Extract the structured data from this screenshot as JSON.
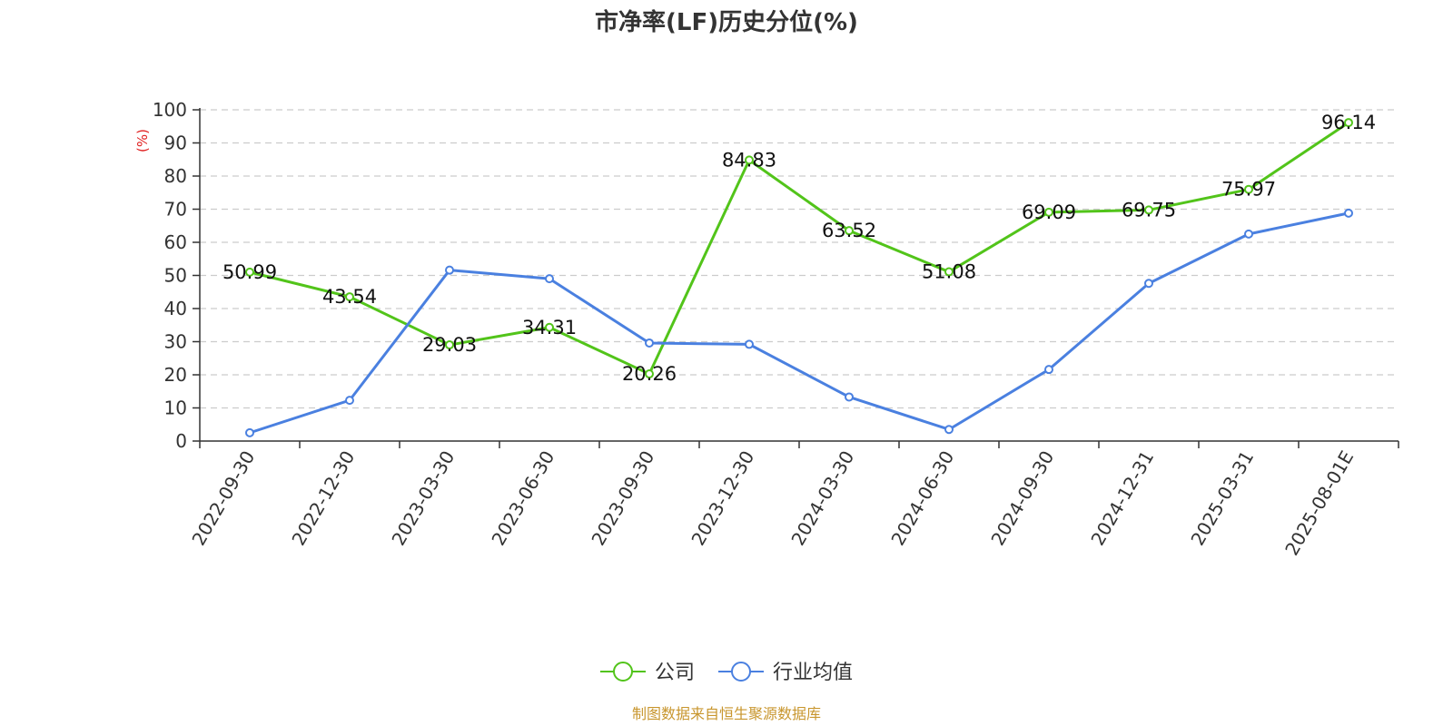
{
  "chart_data": {
    "type": "line",
    "title": "市净率(LF)历史分位(%)",
    "ylabel": "(%)",
    "ylim": [
      0,
      100
    ],
    "yticks": [
      0,
      10,
      20,
      30,
      40,
      50,
      60,
      70,
      80,
      90,
      100
    ],
    "grid": true,
    "legend_position": "bottom",
    "categories": [
      "2022-09-30",
      "2022-12-30",
      "2023-03-30",
      "2023-06-30",
      "2023-09-30",
      "2023-12-30",
      "2024-03-30",
      "2024-06-30",
      "2024-09-30",
      "2024-12-31",
      "2025-03-31",
      "2025-08-01E"
    ],
    "series": [
      {
        "name": "公司",
        "color": "#52c41a",
        "values": [
          50.99,
          43.54,
          29.03,
          34.31,
          20.26,
          84.83,
          63.52,
          51.08,
          69.09,
          69.75,
          75.97,
          96.14
        ],
        "labels": [
          "50.99",
          "43.54",
          "29.03",
          "34.31",
          "20.26",
          "84.83",
          "63.52",
          "51.08",
          "69.09",
          "69.75",
          "75.97",
          "96.14"
        ]
      },
      {
        "name": "行业均值",
        "color": "#4a80e0",
        "values": [
          2.5,
          12.3,
          51.6,
          49.0,
          29.6,
          29.2,
          13.3,
          3.5,
          21.6,
          47.6,
          62.5,
          68.8
        ]
      }
    ]
  },
  "source_text": "制图数据来自恒生聚源数据库",
  "colors": {
    "unit_label": "#e02020",
    "source_text": "#c8962e",
    "axis": "#333333",
    "grid": "#cccccc"
  }
}
